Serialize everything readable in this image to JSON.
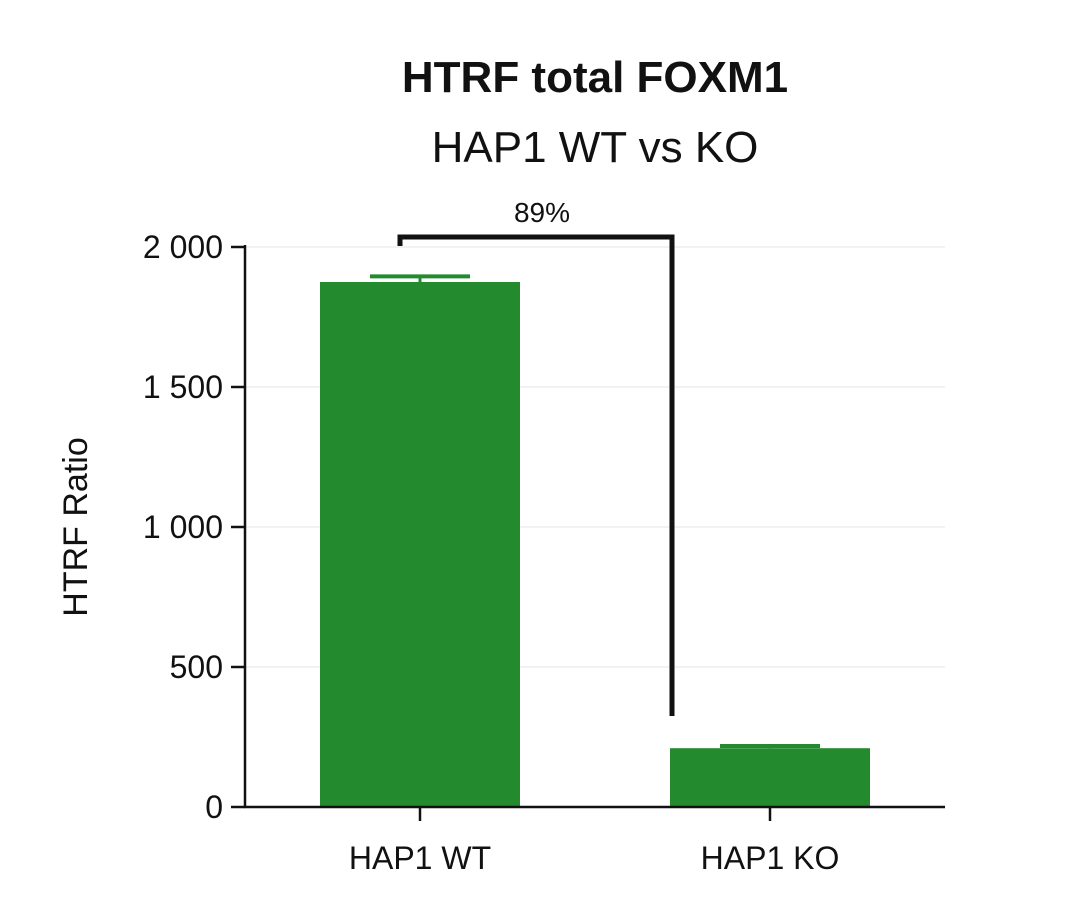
{
  "chart_data": {
    "type": "bar",
    "title": "HTRF total FOXM1",
    "subtitle": "HAP1 WT vs KO",
    "xlabel": "",
    "ylabel": "HTRF Ratio",
    "categories": [
      "HAP1 WT",
      "HAP1 KO"
    ],
    "values": [
      1875,
      210
    ],
    "error": [
      20,
      8
    ],
    "ylim": [
      0,
      2000
    ],
    "yticks": [
      0,
      500,
      1000,
      1500,
      2000
    ],
    "ytick_labels": [
      "0",
      "500",
      "1 000",
      "1 500",
      "2 000"
    ],
    "grid": true,
    "legend": "none",
    "bar_color": "#238b2e",
    "annotation": {
      "text": "89%",
      "from": "HAP1 WT",
      "to": "HAP1 KO"
    }
  }
}
